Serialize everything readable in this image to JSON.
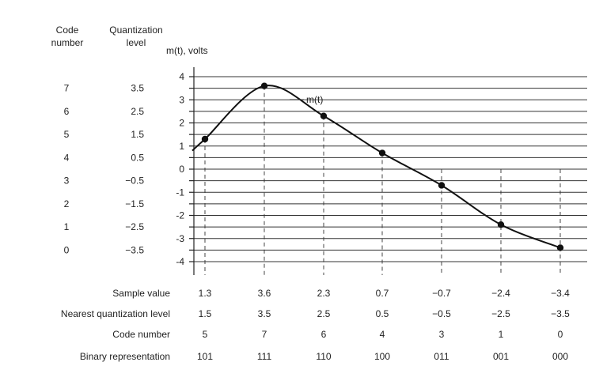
{
  "headers": {
    "code_number": [
      "Code",
      "number"
    ],
    "quantization_level": [
      "Quantization",
      "level"
    ]
  },
  "chart_data": {
    "type": "line",
    "ylabel": "m(t), volts",
    "ylim": [
      -4,
      4
    ],
    "y_ticks": [
      "4",
      "3",
      "2",
      "1",
      "0",
      "-1",
      "-2",
      "-3",
      "-4"
    ],
    "curve_label": "m(t)",
    "code_numbers": [
      "7",
      "6",
      "5",
      "4",
      "3",
      "2",
      "1",
      "0"
    ],
    "quantization_levels": [
      "3.5",
      "2.5",
      "1.5",
      "0.5",
      "−0.5",
      "−1.5",
      "−2.5",
      "−3.5"
    ],
    "samples": [
      {
        "sample": "1.3",
        "value": 1.3,
        "nearest": "1.5",
        "code": "5",
        "binary": "101"
      },
      {
        "sample": "3.6",
        "value": 3.6,
        "nearest": "3.5",
        "code": "7",
        "binary": "111"
      },
      {
        "sample": "2.3",
        "value": 2.3,
        "nearest": "2.5",
        "code": "6",
        "binary": "110"
      },
      {
        "sample": "0.7",
        "value": 0.7,
        "nearest": "0.5",
        "code": "4",
        "binary": "100"
      },
      {
        "sample": "−0.7",
        "value": -0.7,
        "nearest": "−0.5",
        "code": "3",
        "binary": "011"
      },
      {
        "sample": "−2.4",
        "value": -2.4,
        "nearest": "−2.5",
        "code": "1",
        "binary": "001"
      },
      {
        "sample": "−3.4",
        "value": -3.4,
        "nearest": "−3.5",
        "code": "0",
        "binary": "000"
      }
    ],
    "rows": {
      "sample_value": "Sample value",
      "nearest_level": "Nearest quantization level",
      "code_number": "Code number",
      "binary": "Binary representation"
    }
  }
}
